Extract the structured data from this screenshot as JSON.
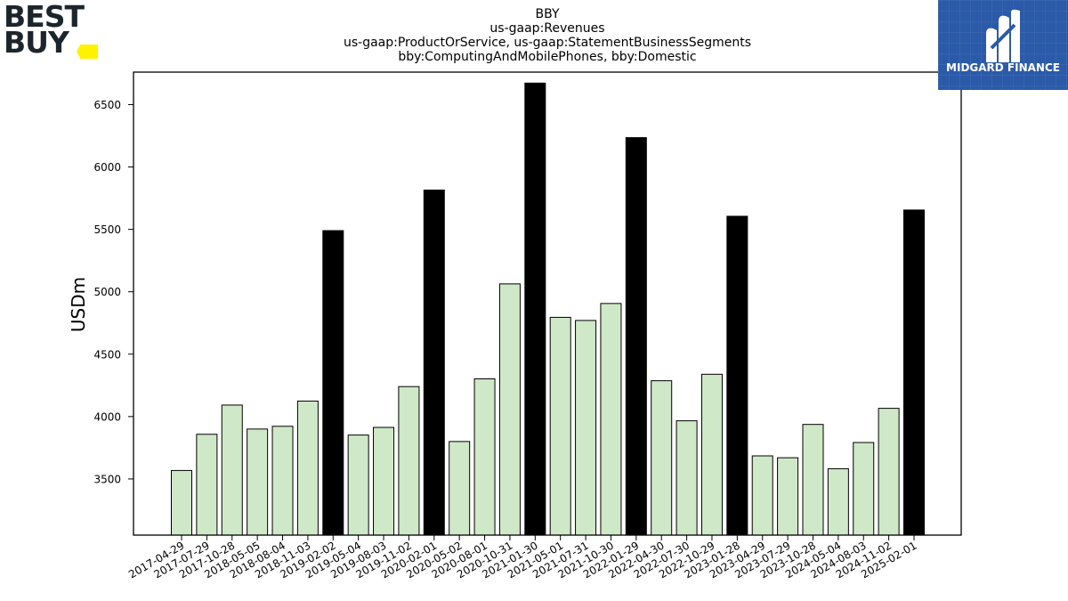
{
  "logos": {
    "left": {
      "text_line1": "BEST",
      "text_line2": "BUY",
      "tag_color": "#fff200"
    },
    "right": {
      "text": "MIDGARD FINANCE",
      "bg_color": "#2a5aa8"
    }
  },
  "chart_data": {
    "type": "bar",
    "title": [
      "BBY",
      "us-gaap:Revenues",
      "us-gaap:ProductOrService, us-gaap:StatementBusinessSegments",
      "bby:ComputingAndMobilePhones, bby:Domestic"
    ],
    "xlabel": "",
    "ylabel": "USDm",
    "ylim": [
      3050,
      6760
    ],
    "yticks": [
      3500,
      4000,
      4500,
      5000,
      5500,
      6000,
      6500
    ],
    "grid": false,
    "colors": {
      "quarter": "#cfe8c7",
      "annual": "#000000",
      "edge": "#000000"
    },
    "categories": [
      "2017-04-29",
      "2017-07-29",
      "2017-10-28",
      "2018-05-05",
      "2018-08-04",
      "2018-11-03",
      "2019-02-02",
      "2019-05-04",
      "2019-08-03",
      "2019-11-02",
      "2020-02-01",
      "2020-05-02",
      "2020-08-01",
      "2020-10-31",
      "2021-01-30",
      "2021-05-01",
      "2021-07-31",
      "2021-10-30",
      "2022-01-29",
      "2022-04-30",
      "2022-07-30",
      "2022-10-29",
      "2023-01-28",
      "2023-04-29",
      "2023-07-29",
      "2023-10-28",
      "2024-05-04",
      "2024-08-03",
      "2024-11-02",
      "2025-02-01"
    ],
    "values": [
      3568,
      3858,
      4092,
      3900,
      3922,
      4124,
      5490,
      3852,
      3913,
      4240,
      5815,
      3800,
      4302,
      5063,
      6672,
      4795,
      4770,
      4906,
      6235,
      4287,
      3966,
      4339,
      5605,
      3685,
      3670,
      3937,
      3582,
      3792,
      4066,
      5655
    ],
    "annual": [
      false,
      false,
      false,
      false,
      false,
      false,
      true,
      false,
      false,
      false,
      true,
      false,
      false,
      false,
      true,
      false,
      false,
      false,
      true,
      false,
      false,
      false,
      true,
      false,
      false,
      false,
      false,
      false,
      false,
      true
    ]
  }
}
